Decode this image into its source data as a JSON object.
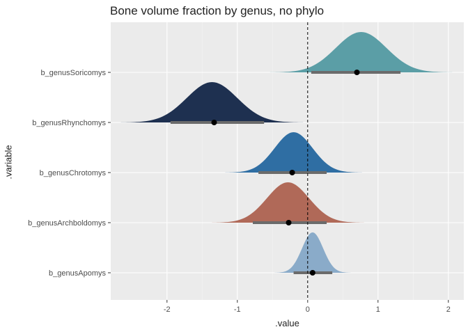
{
  "chart_data": {
    "type": "density_interval",
    "title": "Bone volume fraction by genus, no phylo",
    "xlabel": ".value",
    "ylabel": ".variable",
    "xlim": [
      -2.8,
      2.22
    ],
    "x_ticks": [
      -2,
      -1,
      0,
      1,
      2
    ],
    "x_tick_labels": [
      "-2",
      "-1",
      "0",
      "1",
      "2"
    ],
    "reference_line": 0,
    "grid": true,
    "background": "#ebebeb",
    "series": [
      {
        "name": "b_genusSoricomys",
        "color": "#5b9ea6",
        "mean": 0.76,
        "sd": 0.36,
        "point": 0.7,
        "interval": [
          0.05,
          1.32
        ]
      },
      {
        "name": "b_genusRhynchomys",
        "color": "#1e3050",
        "mean": -1.36,
        "sd": 0.36,
        "point": -1.33,
        "interval": [
          -1.95,
          -0.62
        ]
      },
      {
        "name": "b_genusChrotomys",
        "color": "#2f6ea3",
        "mean": -0.2,
        "sd": 0.27,
        "point": -0.22,
        "interval": [
          -0.7,
          0.27
        ]
      },
      {
        "name": "b_genusArchboldomys",
        "color": "#b06958",
        "mean": -0.28,
        "sd": 0.3,
        "point": -0.27,
        "interval": [
          -0.78,
          0.27
        ]
      },
      {
        "name": "b_genusApomys",
        "color": "#8aabc9",
        "mean": 0.07,
        "sd": 0.15,
        "point": 0.07,
        "interval": [
          -0.2,
          0.35
        ]
      }
    ]
  }
}
